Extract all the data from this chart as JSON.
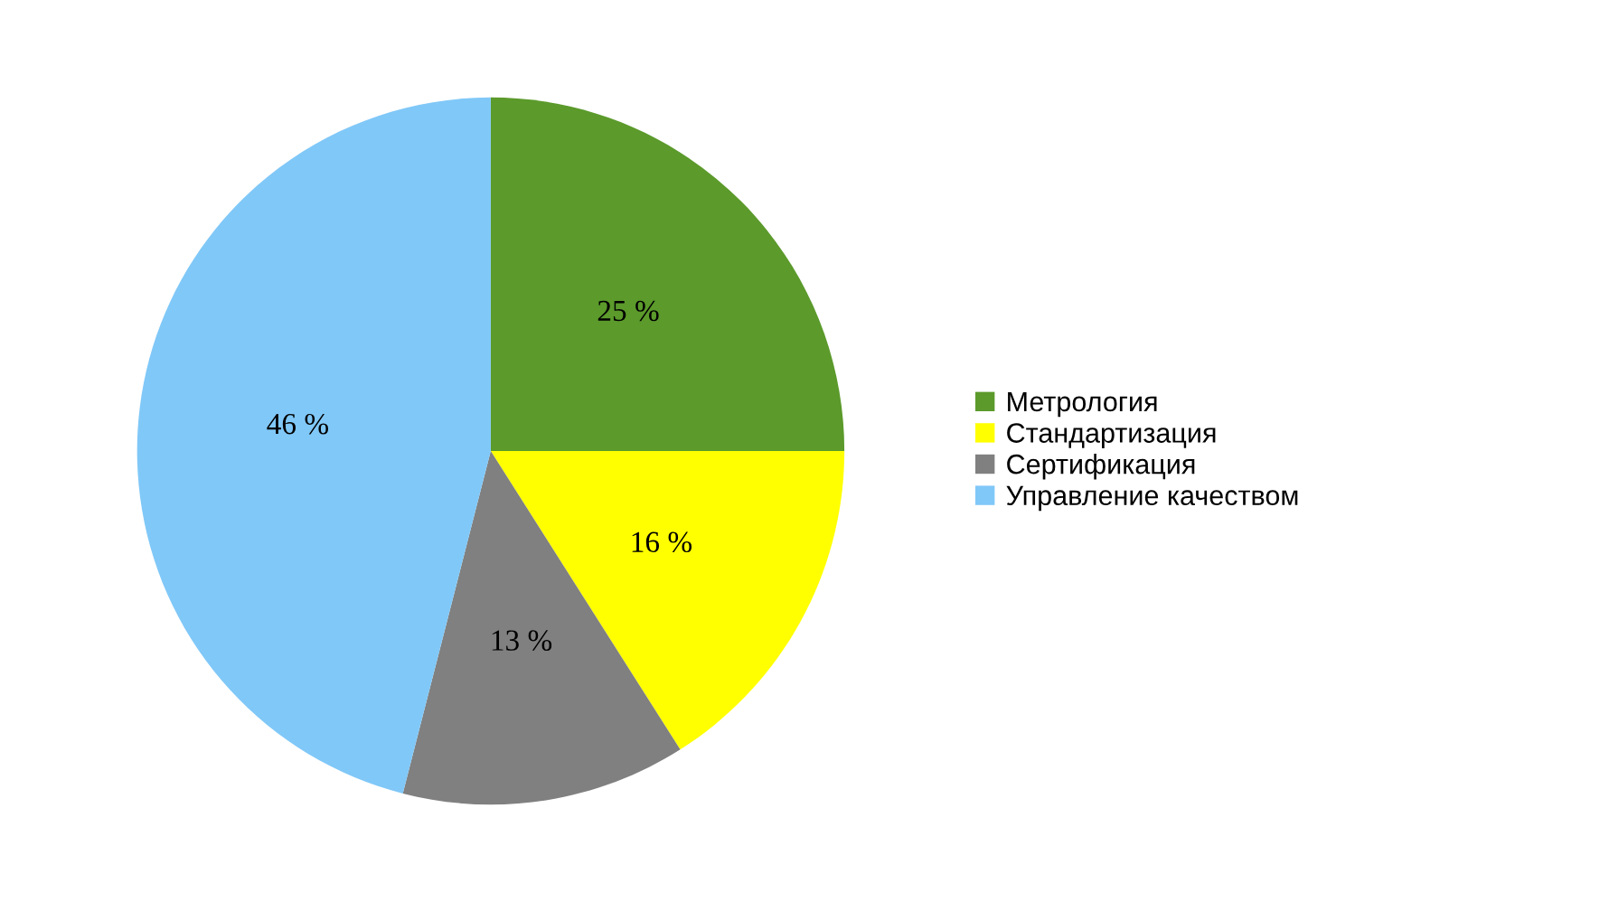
{
  "chart_data": {
    "type": "pie",
    "categories": [
      "Метрология",
      "Стандартизация",
      "Сертификация",
      "Управление качеством"
    ],
    "values": [
      25,
      16,
      13,
      46
    ],
    "colors": [
      "#5b9a2b",
      "#ffff00",
      "#808080",
      "#80c8f8"
    ],
    "value_labels": [
      "25 %",
      "16 %",
      "13 %",
      "46 %"
    ],
    "legend": "right"
  }
}
